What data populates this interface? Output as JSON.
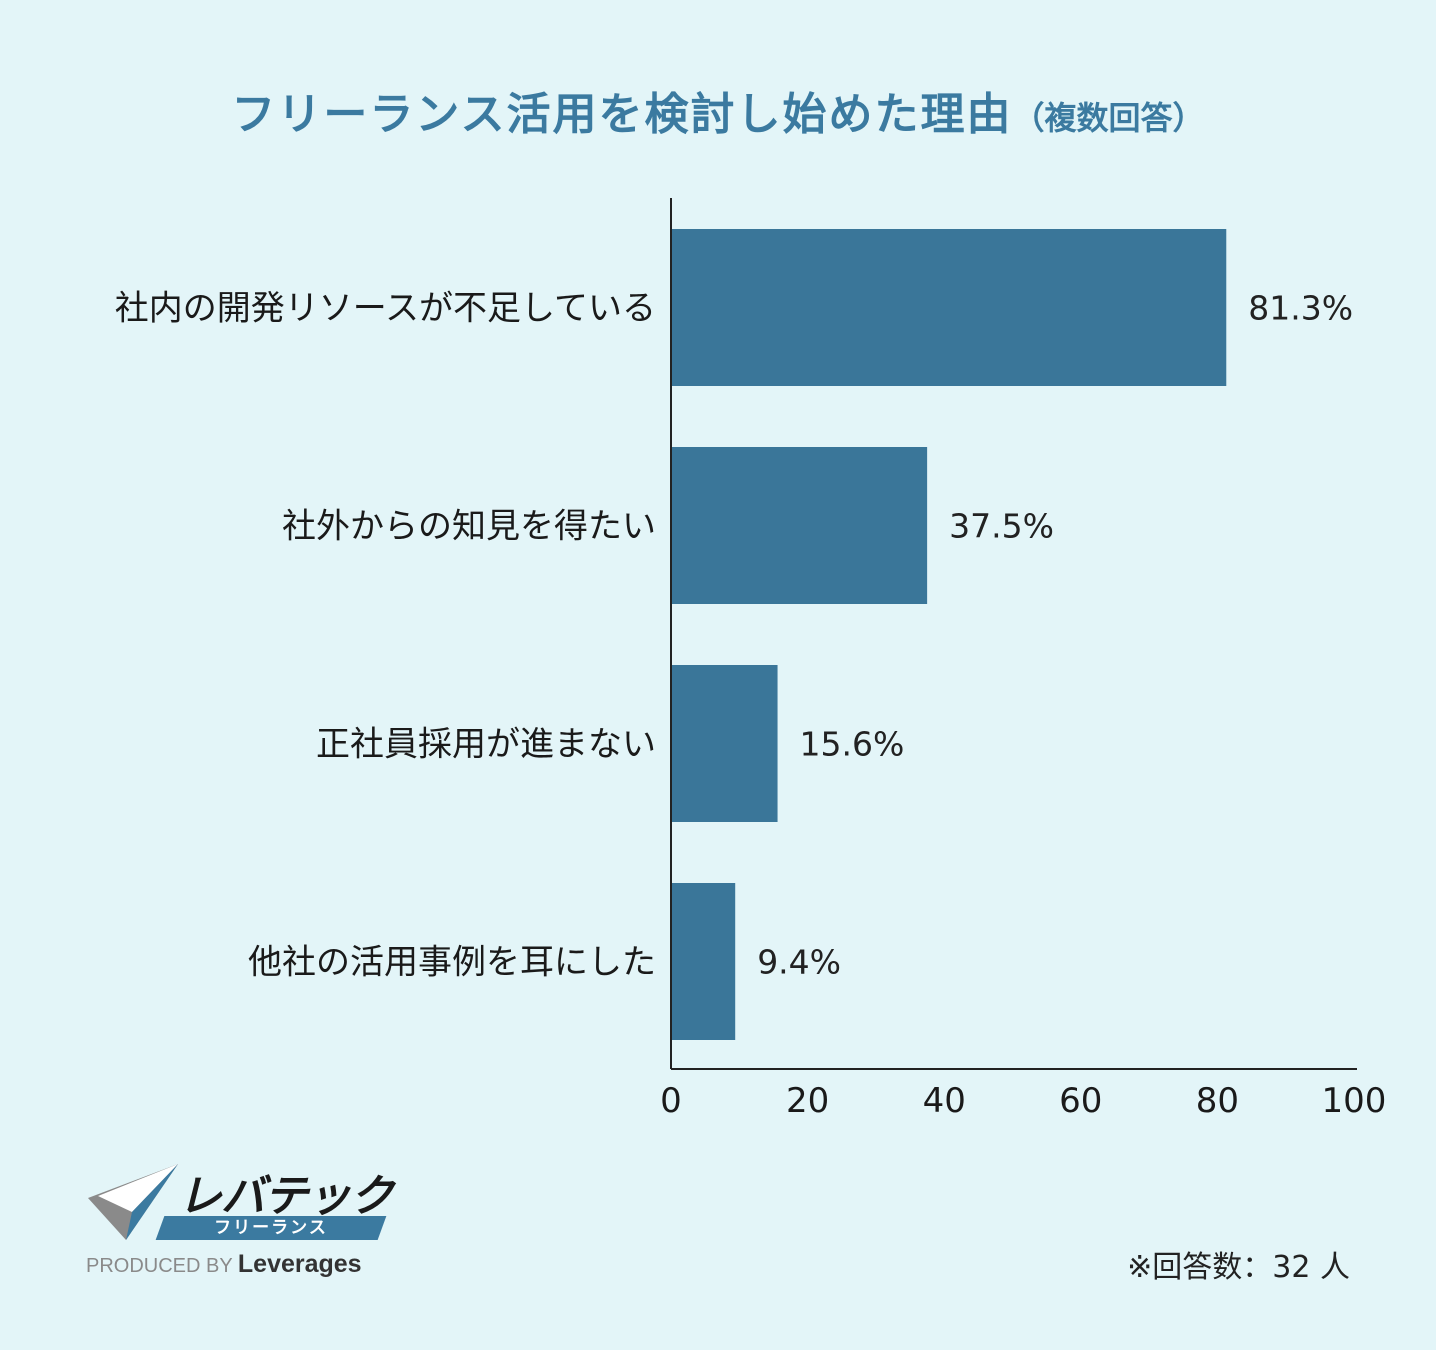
{
  "title": "フリーランス活用を検討し始めた理由",
  "title_sub": "（複数回答）",
  "colors": {
    "background": "#e3f5f8",
    "bar": "#3a7699",
    "title": "#3b7aa0",
    "text": "#1a1a1a"
  },
  "chart_data": {
    "type": "bar",
    "orientation": "horizontal",
    "categories": [
      "社内の開発リソースが不足している",
      "社外からの知見を得たい",
      "正社員採用が進まない",
      "他社の活用事例を耳にした"
    ],
    "values": [
      81.3,
      37.5,
      15.6,
      9.4
    ],
    "data_labels": [
      "81.3%",
      "37.5%",
      "15.6%",
      "9.4%"
    ],
    "xlim": [
      0,
      100
    ],
    "xticks": [
      0,
      20,
      40,
      60,
      80,
      100
    ],
    "grid": false
  },
  "logo": {
    "name": "レバテック",
    "banner": "フリーランス",
    "produced_by": "PRODUCED BY",
    "brand": "Leverages"
  },
  "footnote": "※回答数：32 人"
}
